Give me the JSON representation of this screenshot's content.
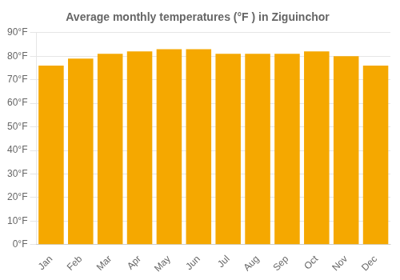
{
  "chart_data": {
    "type": "bar",
    "title": "Average monthly temperatures (°F ) in Ziguinchor",
    "categories": [
      "Jan",
      "Feb",
      "Mar",
      "Apr",
      "May",
      "Jun",
      "Jul",
      "Aug",
      "Sep",
      "Oct",
      "Nov",
      "Dec"
    ],
    "values": [
      76,
      79,
      81,
      82,
      83,
      83,
      81,
      81,
      81,
      82,
      80,
      76
    ],
    "color": "#F5A800",
    "ylim": [
      0,
      90
    ],
    "yticks": [
      {
        "value": 0,
        "label": "0°F"
      },
      {
        "value": 10,
        "label": "10°F"
      },
      {
        "value": 20,
        "label": "20°F"
      },
      {
        "value": 30,
        "label": "30°F"
      },
      {
        "value": 40,
        "label": "40°F"
      },
      {
        "value": 50,
        "label": "50°F"
      },
      {
        "value": 60,
        "label": "60°F"
      },
      {
        "value": 70,
        "label": "70°F"
      },
      {
        "value": 80,
        "label": "80°F"
      },
      {
        "value": 90,
        "label": "90°F"
      }
    ],
    "grid": true
  }
}
